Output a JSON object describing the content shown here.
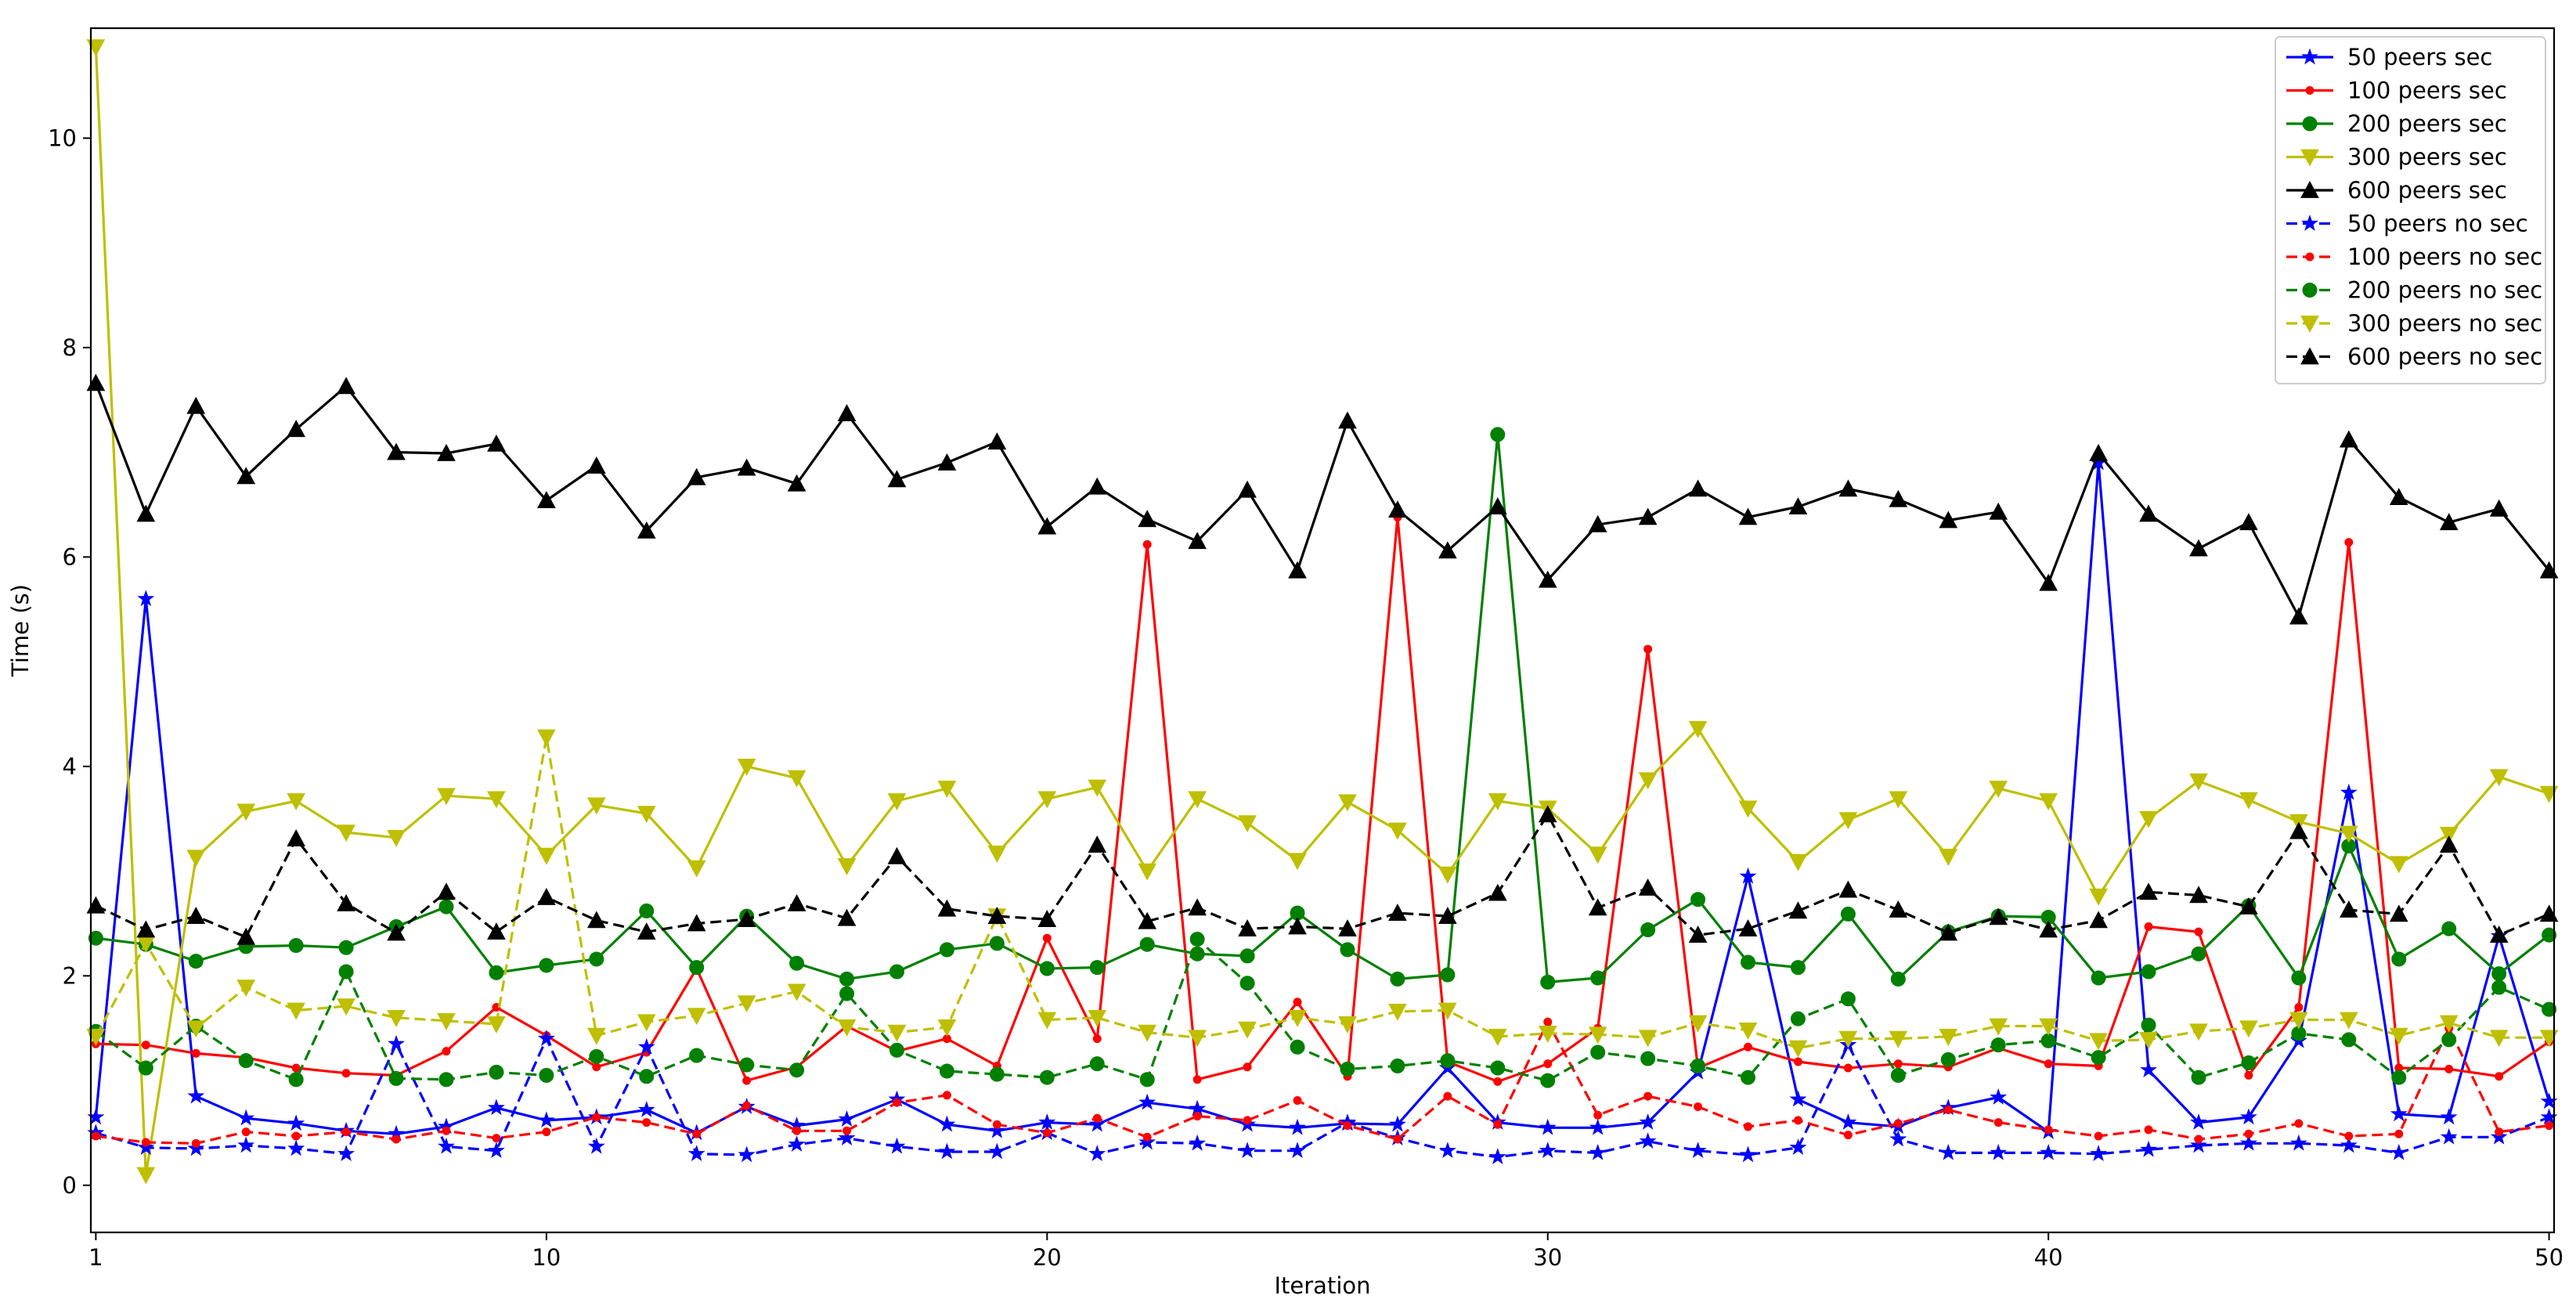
{
  "chart_data": {
    "type": "line",
    "title": "",
    "xlabel": "Iteration",
    "ylabel": "Time (s)",
    "xlim": [
      0.9,
      50.1
    ],
    "ylim": [
      -0.45,
      11.05
    ],
    "xticks": [
      1,
      10,
      20,
      30,
      40,
      50
    ],
    "yticks": [
      0,
      2,
      4,
      6,
      8,
      10
    ],
    "grid": false,
    "legend_position": "top-right",
    "x": [
      1,
      2,
      3,
      4,
      5,
      6,
      7,
      8,
      9,
      10,
      11,
      12,
      13,
      14,
      15,
      16,
      17,
      18,
      19,
      20,
      21,
      22,
      23,
      24,
      25,
      26,
      27,
      28,
      29,
      30,
      31,
      32,
      33,
      34,
      35,
      36,
      37,
      38,
      39,
      40,
      41,
      42,
      43,
      44,
      45,
      46,
      47,
      48,
      49,
      50
    ],
    "series": [
      {
        "name": "50 peers sec",
        "color": "#0000ff",
        "marker": "star",
        "dashed": false,
        "values": [
          0.65,
          5.6,
          0.85,
          0.64,
          0.59,
          0.52,
          0.49,
          0.56,
          0.74,
          0.62,
          0.65,
          0.72,
          0.5,
          0.75,
          0.57,
          0.63,
          0.82,
          0.58,
          0.52,
          0.6,
          0.58,
          0.79,
          0.73,
          0.58,
          0.55,
          0.59,
          0.58,
          1.12,
          0.6,
          0.55,
          0.55,
          0.6,
          1.08,
          2.95,
          0.82,
          0.6,
          0.56,
          0.74,
          0.84,
          0.51,
          6.9,
          1.1,
          0.6,
          0.65,
          1.38,
          3.75,
          0.68,
          0.65,
          2.38,
          0.8
        ]
      },
      {
        "name": "100 peers sec",
        "color": "#ff0000",
        "marker": "dot",
        "dashed": false,
        "values": [
          1.35,
          1.34,
          1.26,
          1.22,
          1.12,
          1.07,
          1.05,
          1.28,
          1.7,
          1.43,
          1.13,
          1.27,
          2.07,
          1.0,
          1.13,
          1.52,
          1.28,
          1.4,
          1.14,
          2.36,
          1.4,
          6.12,
          1.01,
          1.13,
          1.75,
          1.04,
          6.38,
          1.18,
          0.99,
          1.16,
          1.5,
          5.12,
          1.12,
          1.32,
          1.18,
          1.12,
          1.16,
          1.13,
          1.31,
          1.16,
          1.14,
          2.47,
          2.42,
          1.05,
          1.7,
          6.14,
          1.12,
          1.11,
          1.04,
          1.37
        ]
      },
      {
        "name": "200 peers sec",
        "color": "#008000",
        "marker": "circle",
        "dashed": false,
        "values": [
          2.36,
          2.3,
          2.14,
          2.28,
          2.29,
          2.27,
          2.47,
          2.66,
          2.03,
          2.1,
          2.16,
          2.62,
          2.08,
          2.57,
          2.12,
          1.97,
          2.04,
          2.25,
          2.31,
          2.07,
          2.08,
          2.3,
          2.21,
          2.19,
          2.6,
          2.25,
          1.97,
          2.01,
          7.17,
          1.94,
          1.98,
          2.44,
          2.73,
          2.13,
          2.08,
          2.59,
          1.97,
          2.42,
          2.57,
          2.56,
          1.98,
          2.04,
          2.21,
          2.67,
          1.98,
          3.24,
          2.16,
          2.45,
          2.02,
          2.39
        ]
      },
      {
        "name": "300 peers sec",
        "color": "#bfbf00",
        "marker": "triangle-down",
        "dashed": false,
        "values": [
          10.87,
          0.1,
          3.13,
          3.57,
          3.67,
          3.37,
          3.32,
          3.72,
          3.69,
          3.15,
          3.63,
          3.55,
          3.03,
          4.0,
          3.89,
          3.05,
          3.67,
          3.79,
          3.17,
          3.69,
          3.8,
          3.0,
          3.69,
          3.46,
          3.1,
          3.66,
          3.39,
          2.97,
          3.67,
          3.6,
          3.16,
          3.87,
          4.36,
          3.6,
          3.09,
          3.49,
          3.69,
          3.14,
          3.79,
          3.67,
          2.76,
          3.5,
          3.86,
          3.68,
          3.47,
          3.36,
          3.07,
          3.35,
          3.9,
          3.74
        ]
      },
      {
        "name": "600 peers sec",
        "color": "#000000",
        "marker": "triangle-up",
        "dashed": false,
        "values": [
          7.66,
          6.41,
          7.44,
          6.77,
          7.22,
          7.63,
          7.0,
          6.99,
          7.08,
          6.54,
          6.87,
          6.25,
          6.76,
          6.85,
          6.7,
          7.37,
          6.74,
          6.9,
          7.1,
          6.29,
          6.67,
          6.36,
          6.15,
          6.64,
          5.87,
          7.3,
          6.45,
          6.06,
          6.48,
          5.78,
          6.31,
          6.38,
          6.65,
          6.38,
          6.48,
          6.65,
          6.55,
          6.35,
          6.43,
          5.75,
          6.99,
          6.41,
          6.08,
          6.33,
          5.43,
          7.12,
          6.57,
          6.33,
          6.46,
          5.87
        ]
      },
      {
        "name": "50 peers no sec",
        "color": "#0000ff",
        "marker": "star",
        "dashed": true,
        "values": [
          0.5,
          0.36,
          0.35,
          0.38,
          0.35,
          0.3,
          1.35,
          0.37,
          0.33,
          1.4,
          0.37,
          1.32,
          0.3,
          0.29,
          0.39,
          0.45,
          0.37,
          0.32,
          0.32,
          0.5,
          0.3,
          0.41,
          0.4,
          0.33,
          0.33,
          0.6,
          0.45,
          0.33,
          0.27,
          0.33,
          0.31,
          0.42,
          0.33,
          0.29,
          0.36,
          1.34,
          0.44,
          0.31,
          0.31,
          0.31,
          0.3,
          0.34,
          0.38,
          0.4,
          0.4,
          0.38,
          0.31,
          0.46,
          0.46,
          0.65
        ]
      },
      {
        "name": "100 peers no sec",
        "color": "#ff0000",
        "marker": "dot",
        "dashed": true,
        "values": [
          0.47,
          0.41,
          0.4,
          0.51,
          0.47,
          0.51,
          0.44,
          0.52,
          0.45,
          0.51,
          0.65,
          0.6,
          0.49,
          0.76,
          0.52,
          0.52,
          0.79,
          0.86,
          0.58,
          0.5,
          0.64,
          0.46,
          0.66,
          0.62,
          0.81,
          0.57,
          0.44,
          0.85,
          0.58,
          1.56,
          0.67,
          0.85,
          0.75,
          0.56,
          0.62,
          0.48,
          0.59,
          0.72,
          0.6,
          0.53,
          0.47,
          0.53,
          0.44,
          0.49,
          0.59,
          0.47,
          0.49,
          1.5,
          0.51,
          0.57
        ]
      },
      {
        "name": "200 peers no sec",
        "color": "#008000",
        "marker": "circle",
        "dashed": true,
        "values": [
          1.47,
          1.12,
          1.52,
          1.19,
          1.01,
          2.04,
          1.02,
          1.01,
          1.08,
          1.05,
          1.23,
          1.04,
          1.24,
          1.15,
          1.1,
          1.83,
          1.29,
          1.09,
          1.06,
          1.03,
          1.16,
          1.01,
          2.35,
          1.93,
          1.32,
          1.11,
          1.14,
          1.19,
          1.12,
          1.0,
          1.27,
          1.21,
          1.14,
          1.03,
          1.59,
          1.78,
          1.05,
          1.2,
          1.34,
          1.38,
          1.22,
          1.53,
          1.03,
          1.17,
          1.45,
          1.39,
          1.03,
          1.39,
          1.89,
          1.68
        ]
      },
      {
        "name": "300 peers no sec",
        "color": "#bfbf00",
        "marker": "triangle-down",
        "dashed": true,
        "values": [
          1.42,
          2.31,
          1.5,
          1.89,
          1.67,
          1.71,
          1.6,
          1.57,
          1.54,
          4.28,
          1.43,
          1.56,
          1.62,
          1.74,
          1.85,
          1.51,
          1.46,
          1.51,
          2.57,
          1.58,
          1.6,
          1.46,
          1.41,
          1.49,
          1.6,
          1.54,
          1.66,
          1.67,
          1.42,
          1.45,
          1.44,
          1.41,
          1.55,
          1.48,
          1.31,
          1.4,
          1.4,
          1.42,
          1.52,
          1.52,
          1.38,
          1.39,
          1.47,
          1.5,
          1.58,
          1.58,
          1.43,
          1.55,
          1.41,
          1.41
        ]
      },
      {
        "name": "600 peers no sec",
        "color": "#000000",
        "marker": "triangle-up",
        "dashed": true,
        "values": [
          2.67,
          2.44,
          2.57,
          2.37,
          3.31,
          2.69,
          2.41,
          2.8,
          2.42,
          2.75,
          2.53,
          2.42,
          2.5,
          2.54,
          2.69,
          2.55,
          3.14,
          2.64,
          2.57,
          2.54,
          3.25,
          2.52,
          2.65,
          2.45,
          2.47,
          2.45,
          2.6,
          2.57,
          2.79,
          3.54,
          2.65,
          2.84,
          2.39,
          2.45,
          2.62,
          2.82,
          2.63,
          2.41,
          2.56,
          2.44,
          2.53,
          2.8,
          2.77,
          2.66,
          3.38,
          2.63,
          2.59,
          3.25,
          2.39,
          2.59
        ]
      }
    ]
  }
}
